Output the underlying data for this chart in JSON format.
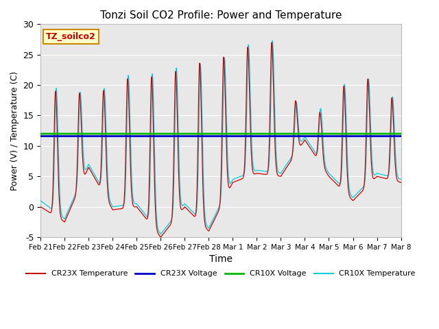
{
  "title": "Tonzi Soil CO2 Profile: Power and Temperature",
  "xlabel": "Time",
  "ylabel": "Power (V) / Temperature (C)",
  "ylim": [
    -5,
    30
  ],
  "yticks": [
    -5,
    0,
    5,
    10,
    15,
    20,
    25,
    30
  ],
  "plot_bg_color": "#e8e8e8",
  "cr23x_temp_color": "#cc0000",
  "cr23x_volt_color": "#0000cc",
  "cr10x_volt_color": "#00bb00",
  "cr10x_temp_color": "#00ccdd",
  "cr23x_volt_value": 11.6,
  "cr10x_volt_value": 12.0,
  "legend_label_cr23x_temp": "CR23X Temperature",
  "legend_label_cr23x_volt": "CR23X Voltage",
  "legend_label_cr10x_volt": "CR10X Voltage",
  "legend_label_cr10x_temp": "CR10X Temperature",
  "annotation_text": "TZ_soilco2",
  "annotation_bg": "#ffffcc",
  "annotation_border": "#cc8800",
  "x_tick_labels": [
    "Feb 21",
    "Feb 22",
    "Feb 23",
    "Feb 24",
    "Feb 25",
    "Feb 26",
    "Feb 27",
    "Feb 28",
    "Mar 1",
    "Mar 2",
    "Mar 3",
    "Mar 4",
    "Mar 5",
    "Mar 6",
    "Mar 7",
    "Mar 8"
  ]
}
